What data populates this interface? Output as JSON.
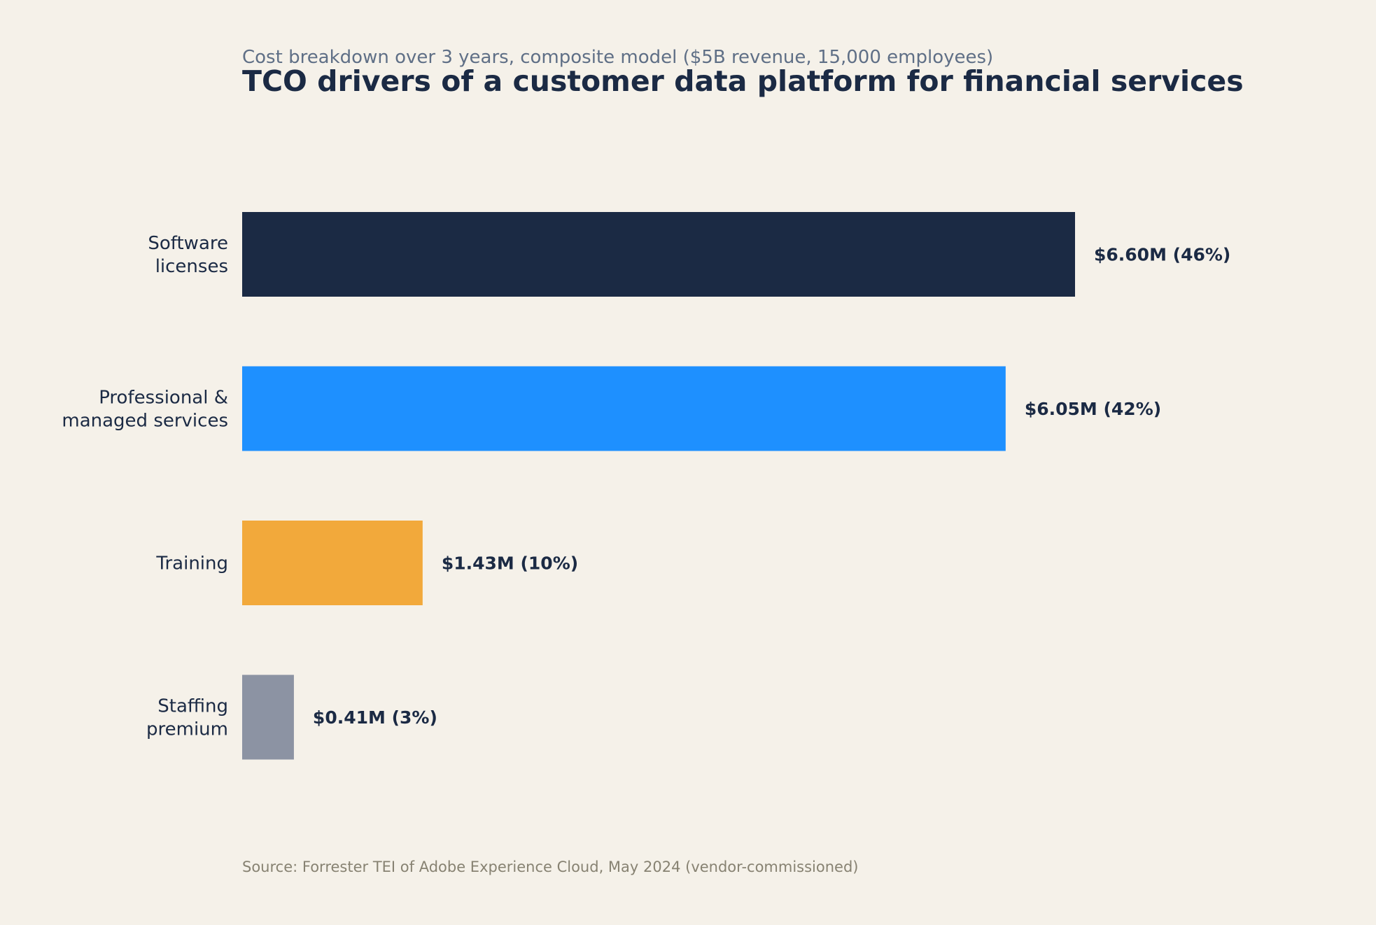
{
  "chart_data": {
    "type": "bar",
    "orientation": "horizontal",
    "subtitle": "Cost breakdown over 3 years, composite model ($5B revenue, 15,000 employees)",
    "title": "TCO drivers of a customer data platform for financial services",
    "source": "Source: Forrester TEI of Adobe Experience Cloud, May 2024 (vendor-commissioned)",
    "categories": [
      [
        "Software",
        "licenses"
      ],
      [
        "Professional &",
        "managed services"
      ],
      [
        "Training"
      ],
      [
        "Staffing",
        "premium"
      ]
    ],
    "values": [
      6.6,
      6.05,
      1.43,
      0.41
    ],
    "percents": [
      46,
      42,
      10,
      3
    ],
    "value_labels": [
      "$6.60M  (46%)",
      "$6.05M  (42%)",
      "$1.43M  (10%)",
      "$0.41M  (3%)"
    ],
    "colors": [
      "#1b2a44",
      "#1e90ff",
      "#f2a93b",
      "#8c93a3"
    ],
    "units": "$M",
    "xlim": [
      0,
      6.6
    ],
    "grid": false,
    "legend": "none"
  }
}
